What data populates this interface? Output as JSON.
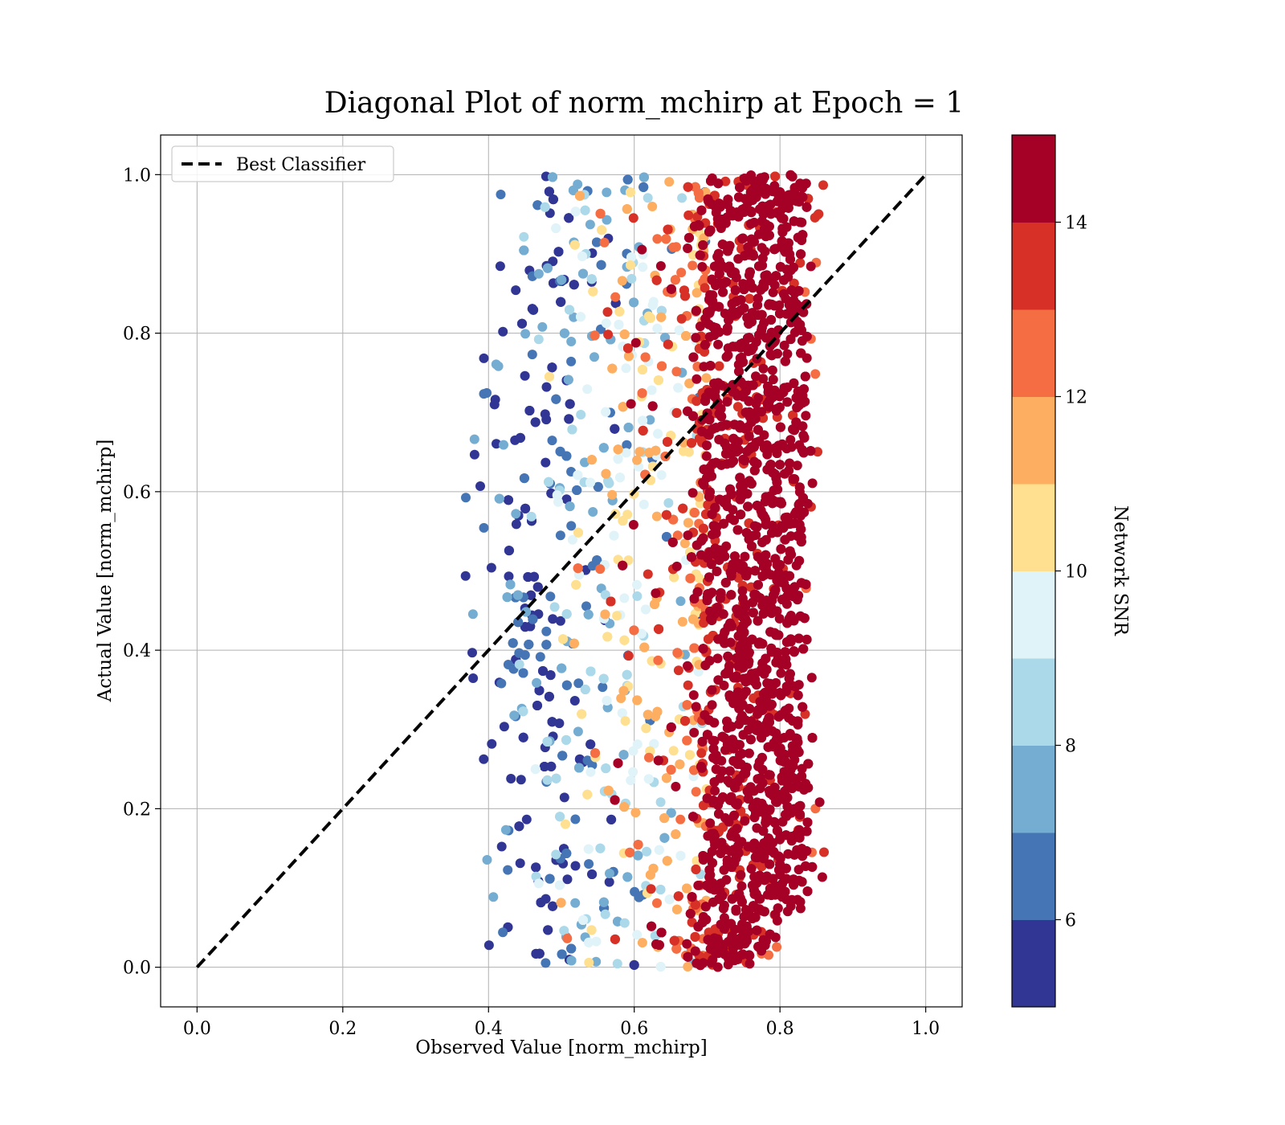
{
  "chart_data": {
    "type": "scatter",
    "title": "Diagonal Plot of norm_mchirp at Epoch = 1",
    "xlabel": "Observed Value [norm_mchirp]",
    "ylabel": "Actual Value [norm_mchirp]",
    "xlim": [
      -0.05,
      1.05
    ],
    "ylim": [
      -0.05,
      1.05
    ],
    "xticks": [
      "0.0",
      "0.2",
      "0.4",
      "0.6",
      "0.8",
      "1.0"
    ],
    "yticks": [
      "0.0",
      "0.2",
      "0.4",
      "0.6",
      "0.8",
      "1.0"
    ],
    "grid": true,
    "legend": {
      "placement": "upper-left",
      "entries": [
        "Best Classifier"
      ]
    },
    "reference_line": {
      "name": "Best Classifier",
      "style": "dashed",
      "color": "#000000",
      "x": [
        0,
        1
      ],
      "y": [
        0,
        1
      ]
    },
    "colorbar": {
      "label": "Network SNR",
      "range": [
        5,
        15
      ],
      "ticks": [
        "6",
        "8",
        "10",
        "12",
        "14"
      ],
      "colors": [
        "#313695",
        "#4575b4",
        "#74add1",
        "#abd9e9",
        "#e0f3f8",
        "#fee090",
        "#fdae61",
        "#f46d43",
        "#d73027",
        "#a50026"
      ]
    },
    "scatter_distribution": {
      "description_values": "points span observed 0.38-0.86, actual 0.0-1.0; SNR increases with observed value",
      "x_range": [
        0.38,
        0.86
      ],
      "y_range": [
        0.0,
        1.0
      ],
      "dense_high_snr_x": [
        0.65,
        0.84
      ]
    }
  }
}
